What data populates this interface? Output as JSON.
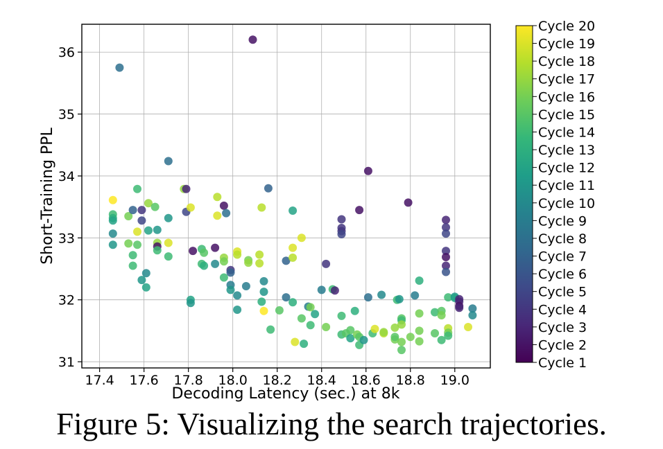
{
  "caption": "Figure 5: Visualizing the search trajectories.",
  "chart_data": {
    "type": "scatter",
    "xlabel": "Decoding Latency (sec.) at 8k",
    "ylabel": "Short-Training PPL",
    "xlim": [
      17.32,
      19.16
    ],
    "ylim": [
      30.9,
      36.45
    ],
    "xticks": [
      17.4,
      17.6,
      17.8,
      18.0,
      18.2,
      18.4,
      18.6,
      18.8,
      19.0
    ],
    "xtick_labels": [
      "17.4",
      "17.6",
      "17.8",
      "18.0",
      "18.2",
      "18.4",
      "18.6",
      "18.8",
      "19.0"
    ],
    "yticks": [
      31,
      32,
      33,
      34,
      35,
      36
    ],
    "ytick_labels": [
      "31",
      "32",
      "33",
      "34",
      "35",
      "36"
    ],
    "grid": true,
    "colormap": "viridis",
    "colorbar_labels": [
      "Cycle 20",
      "Cycle 19",
      "Cycle 18",
      "Cycle 17",
      "Cycle 16",
      "Cycle 15",
      "Cycle 14",
      "Cycle 13",
      "Cycle 12",
      "Cycle 11",
      "Cycle 10",
      "Cycle 9",
      "Cycle 8",
      "Cycle 7",
      "Cycle 6",
      "Cycle 5",
      "Cycle 4",
      "Cycle 3",
      "Cycle 2",
      "Cycle 1"
    ],
    "point_fields": [
      "x",
      "y",
      "cycle"
    ],
    "points": [
      [
        17.46,
        33.61,
        20
      ],
      [
        17.46,
        33.38,
        14
      ],
      [
        17.46,
        33.32,
        13
      ],
      [
        17.46,
        33.28,
        12
      ],
      [
        17.46,
        33.07,
        10
      ],
      [
        17.46,
        32.89,
        11
      ],
      [
        17.49,
        35.75,
        8
      ],
      [
        17.53,
        33.35,
        16
      ],
      [
        17.53,
        32.91,
        16
      ],
      [
        17.55,
        33.45,
        7
      ],
      [
        17.55,
        32.72,
        14
      ],
      [
        17.55,
        32.55,
        14
      ],
      [
        17.57,
        33.79,
        14
      ],
      [
        17.57,
        33.1,
        19
      ],
      [
        17.57,
        32.89,
        15
      ],
      [
        17.59,
        33.45,
        4
      ],
      [
        17.59,
        33.28,
        5
      ],
      [
        17.59,
        32.32,
        11
      ],
      [
        17.61,
        32.43,
        10
      ],
      [
        17.61,
        32.2,
        12
      ],
      [
        17.62,
        33.56,
        17
      ],
      [
        17.62,
        33.12,
        12
      ],
      [
        17.65,
        33.5,
        15
      ],
      [
        17.66,
        33.13,
        11
      ],
      [
        17.66,
        32.92,
        17
      ],
      [
        17.66,
        32.86,
        2
      ],
      [
        17.66,
        32.8,
        14
      ],
      [
        17.71,
        34.24,
        8
      ],
      [
        17.71,
        33.32,
        11
      ],
      [
        17.71,
        32.92,
        19
      ],
      [
        17.71,
        32.7,
        14
      ],
      [
        17.78,
        33.79,
        17
      ],
      [
        17.79,
        33.79,
        3
      ],
      [
        17.79,
        33.42,
        5
      ],
      [
        17.81,
        32.0,
        12
      ],
      [
        17.81,
        31.95,
        11
      ],
      [
        17.81,
        33.49,
        19
      ],
      [
        17.82,
        32.79,
        2
      ],
      [
        17.86,
        32.82,
        14
      ],
      [
        17.86,
        32.58,
        14
      ],
      [
        17.87,
        32.76,
        15
      ],
      [
        17.87,
        32.55,
        13
      ],
      [
        17.92,
        32.84,
        2
      ],
      [
        17.92,
        32.58,
        10
      ],
      [
        17.93,
        33.66,
        18
      ],
      [
        17.93,
        33.36,
        19
      ],
      [
        17.96,
        32.68,
        17
      ],
      [
        17.96,
        32.62,
        16
      ],
      [
        17.96,
        32.36,
        14
      ],
      [
        17.96,
        33.52,
        2
      ],
      [
        17.97,
        33.4,
        8
      ],
      [
        17.99,
        32.48,
        4
      ],
      [
        17.99,
        32.44,
        7
      ],
      [
        17.99,
        32.24,
        9
      ],
      [
        17.99,
        32.16,
        11
      ],
      [
        18.02,
        32.07,
        10
      ],
      [
        18.02,
        31.84,
        11
      ],
      [
        18.02,
        32.78,
        19
      ],
      [
        18.02,
        32.73,
        18
      ],
      [
        18.06,
        32.22,
        9
      ],
      [
        18.07,
        32.64,
        16
      ],
      [
        18.07,
        32.6,
        17
      ],
      [
        18.09,
        36.2,
        2
      ],
      [
        18.12,
        32.73,
        18
      ],
      [
        18.12,
        32.59,
        18
      ],
      [
        18.13,
        33.49,
        18
      ],
      [
        18.13,
        31.97,
        13
      ],
      [
        18.14,
        31.82,
        20
      ],
      [
        18.14,
        32.3,
        10
      ],
      [
        18.14,
        32.13,
        11
      ],
      [
        18.16,
        33.8,
        7
      ],
      [
        18.17,
        31.52,
        14
      ],
      [
        18.21,
        31.83,
        15
      ],
      [
        18.24,
        32.63,
        7
      ],
      [
        18.24,
        32.04,
        8
      ],
      [
        18.27,
        33.44,
        12
      ],
      [
        18.27,
        32.84,
        19
      ],
      [
        18.27,
        32.68,
        18
      ],
      [
        18.27,
        31.96,
        13
      ],
      [
        18.28,
        31.32,
        19
      ],
      [
        18.31,
        33.0,
        19
      ],
      [
        18.31,
        31.7,
        15
      ],
      [
        18.32,
        31.29,
        13
      ],
      [
        18.34,
        31.89,
        9
      ],
      [
        18.35,
        31.88,
        16
      ],
      [
        18.35,
        31.59,
        14
      ],
      [
        18.37,
        31.77,
        12
      ],
      [
        18.4,
        32.16,
        9
      ],
      [
        18.42,
        32.58,
        4
      ],
      [
        18.42,
        31.56,
        16
      ],
      [
        18.45,
        32.17,
        14
      ],
      [
        18.46,
        32.15,
        3
      ],
      [
        18.49,
        33.3,
        4
      ],
      [
        18.49,
        33.16,
        4
      ],
      [
        18.49,
        33.11,
        4
      ],
      [
        18.49,
        33.06,
        5
      ],
      [
        18.49,
        31.74,
        14
      ],
      [
        18.49,
        31.44,
        14
      ],
      [
        18.51,
        31.46,
        15
      ],
      [
        18.53,
        31.51,
        15
      ],
      [
        18.53,
        31.38,
        12
      ],
      [
        18.55,
        31.82,
        13
      ],
      [
        18.56,
        31.44,
        16
      ],
      [
        18.57,
        31.4,
        15
      ],
      [
        18.57,
        31.27,
        14
      ],
      [
        18.57,
        33.45,
        2
      ],
      [
        18.59,
        31.35,
        11
      ],
      [
        18.61,
        34.08,
        2
      ],
      [
        18.61,
        32.04,
        8
      ],
      [
        18.63,
        31.46,
        14
      ],
      [
        18.64,
        31.53,
        19
      ],
      [
        18.67,
        32.08,
        10
      ],
      [
        18.68,
        31.46,
        18
      ],
      [
        18.68,
        31.48,
        17
      ],
      [
        18.73,
        31.36,
        16
      ],
      [
        18.73,
        31.4,
        15
      ],
      [
        18.73,
        31.55,
        17
      ],
      [
        18.74,
        32.0,
        14
      ],
      [
        18.75,
        32.01,
        11
      ],
      [
        18.76,
        31.7,
        15
      ],
      [
        18.76,
        31.67,
        14
      ],
      [
        18.76,
        31.6,
        17
      ],
      [
        18.76,
        31.32,
        16
      ],
      [
        18.76,
        31.19,
        15
      ],
      [
        18.79,
        33.57,
        2
      ],
      [
        18.8,
        31.4,
        16
      ],
      [
        18.82,
        32.07,
        9
      ],
      [
        18.84,
        32.31,
        13
      ],
      [
        18.84,
        31.78,
        16
      ],
      [
        18.84,
        31.5,
        16
      ],
      [
        18.84,
        31.33,
        16
      ],
      [
        18.91,
        31.8,
        14
      ],
      [
        18.91,
        31.46,
        15
      ],
      [
        18.94,
        31.82,
        15
      ],
      [
        18.94,
        31.75,
        16
      ],
      [
        18.94,
        31.35,
        14
      ],
      [
        18.96,
        33.29,
        3
      ],
      [
        18.96,
        33.17,
        4
      ],
      [
        18.96,
        33.07,
        5
      ],
      [
        18.96,
        32.79,
        4
      ],
      [
        18.96,
        32.69,
        2
      ],
      [
        18.96,
        32.55,
        3
      ],
      [
        18.96,
        32.45,
        6
      ],
      [
        18.97,
        31.54,
        18
      ],
      [
        18.97,
        31.47,
        16
      ],
      [
        18.97,
        31.42,
        14
      ],
      [
        18.97,
        32.04,
        14
      ],
      [
        19.0,
        32.05,
        11
      ],
      [
        19.0,
        32.03,
        12
      ],
      [
        19.02,
        32.01,
        3
      ],
      [
        19.02,
        31.97,
        3
      ],
      [
        19.02,
        31.9,
        2
      ],
      [
        19.02,
        31.87,
        3
      ],
      [
        19.06,
        31.56,
        19
      ],
      [
        19.08,
        31.86,
        9
      ],
      [
        19.08,
        31.75,
        10
      ]
    ]
  }
}
